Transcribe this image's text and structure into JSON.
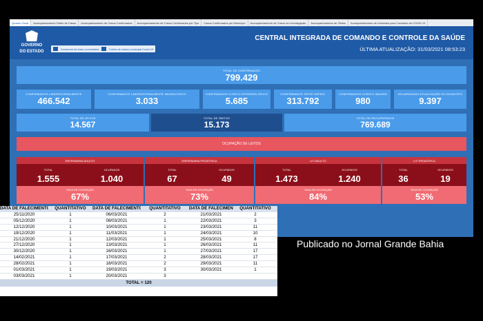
{
  "tabs": [
    "Quadro Geral",
    "Acompanhamento Diário de Casos",
    "Acompanhamento de Casos Confirmados",
    "Acompanhamento de Casos Confirmados por Tipo",
    "Casos Confirmados por Município",
    "Acompanhamento de Casos em Investigação",
    "Acompanhamento de Óbitos",
    "Acompanhamento de Unidades para Cuidados da COVID-19"
  ],
  "header": {
    "gov_line1": "GOVERNO",
    "gov_line2": "DO ESTADO",
    "btn_download": "Download da base consolidada",
    "btn_collect": "Coleta de dados municipal Covid-19",
    "title": "CENTRAL INTEGRADA DE COMANDO E CONTROLE DA SAÚDE",
    "updated": "ÚLTIMA ATUALIZAÇÃO: 31/03/2021 08:53:23"
  },
  "kpis": {
    "total_confirmados": {
      "label": "TOTAL DE CONFIRMADOS",
      "value": "799.429"
    },
    "row2": [
      {
        "label": "CONFIRMADOS LABORATORIALMENTE",
        "value": "466.542"
      },
      {
        "label": "CONFIRMADOS LABORATORIALMENTE IMUNOLÓGICO",
        "value": "3.033"
      },
      {
        "label": "CONFIRMADOS CLÍNICO EPIDEMIOLÓGICO",
        "value": "5.685"
      },
      {
        "label": "CONFIRMADOS TESTE RÁPIDO",
        "value": "313.792"
      },
      {
        "label": "CONFIRMADOS CLÍNICO IMAGEM",
        "value": "980"
      },
      {
        "label": "AGUARDANDO ATUALIZAÇÃO DO MUNICÍPIO",
        "value": "9.397"
      }
    ],
    "ativos": {
      "label": "TOTAL DE ATIVOS",
      "value": "14.567"
    },
    "obitos": {
      "label": "TOTAL DE ÓBITOS",
      "value": "15.173"
    },
    "recuperados": {
      "label": "TOTAL DE RECUPERADOS",
      "value": "769.689"
    }
  },
  "ocupacao_title": "OCUPAÇÃO DE LEITOS",
  "panels": [
    {
      "title": "ENFERMARIA ADULTO",
      "total_label": "TOTAL",
      "total": "1.555",
      "ocup_label": "OCUPADOS",
      "ocupados": "1.040",
      "rate_label": "TAXA DE OCUPAÇÃO",
      "rate": "67%"
    },
    {
      "title": "ENFERMARIA PEDIÁTRICA",
      "total_label": "TOTAL",
      "total": "67",
      "ocup_label": "OCUPADOS",
      "ocupados": "49",
      "rate_label": "TAXA DE OCUPAÇÃO",
      "rate": "73%"
    },
    {
      "title": "UTI ADULTO",
      "total_label": "TOTAL",
      "total": "1.473",
      "ocup_label": "OCUPADOS",
      "ocupados": "1.240",
      "rate_label": "TAXA DE OCUPAÇÃO",
      "rate": "84%"
    },
    {
      "title": "UTI PEDIÁTRICA",
      "total_label": "TOTAL",
      "total": "36",
      "ocup_label": "OCUPADOS",
      "ocupados": "19",
      "rate_label": "TAXA DE OCUPAÇÃO",
      "rate": "53%"
    }
  ],
  "table": {
    "headers": [
      "DATA DE FALECIMENTO",
      "QUANTITATIVO",
      "DATA DE FALECIMENTO",
      "QUANTITATIVO",
      "DATA DE FALECIMENTO",
      "QUANTITATIVO"
    ],
    "rows": [
      [
        "25/11/2020",
        "1",
        "06/03/2021",
        "2",
        "21/03/2021",
        "2"
      ],
      [
        "05/12/2020",
        "1",
        "08/03/2021",
        "1",
        "22/03/2021",
        "3"
      ],
      [
        "12/12/2020",
        "1",
        "10/03/2021",
        "1",
        "23/03/2021",
        "11"
      ],
      [
        "19/12/2020",
        "1",
        "11/03/2021",
        "1",
        "24/03/2021",
        "10"
      ],
      [
        "21/12/2020",
        "1",
        "12/03/2021",
        "1",
        "25/03/2021",
        "8"
      ],
      [
        "27/12/2020",
        "1",
        "13/03/2021",
        "1",
        "26/03/2021",
        "11"
      ],
      [
        "30/12/2020",
        "1",
        "16/03/2021",
        "1",
        "27/03/2021",
        "17"
      ],
      [
        "14/02/2021",
        "1",
        "17/03/2021",
        "2",
        "28/03/2021",
        "17"
      ],
      [
        "28/02/2021",
        "1",
        "18/03/2021",
        "2",
        "29/03/2021",
        "11"
      ],
      [
        "01/03/2021",
        "1",
        "19/03/2021",
        "3",
        "30/03/2021",
        "1"
      ],
      [
        "03/03/2021",
        "1",
        "20/03/2021",
        "3",
        "",
        ""
      ]
    ],
    "total": "TOTAL = 120"
  },
  "caption": "Publicado no Jornal Grande Bahia"
}
